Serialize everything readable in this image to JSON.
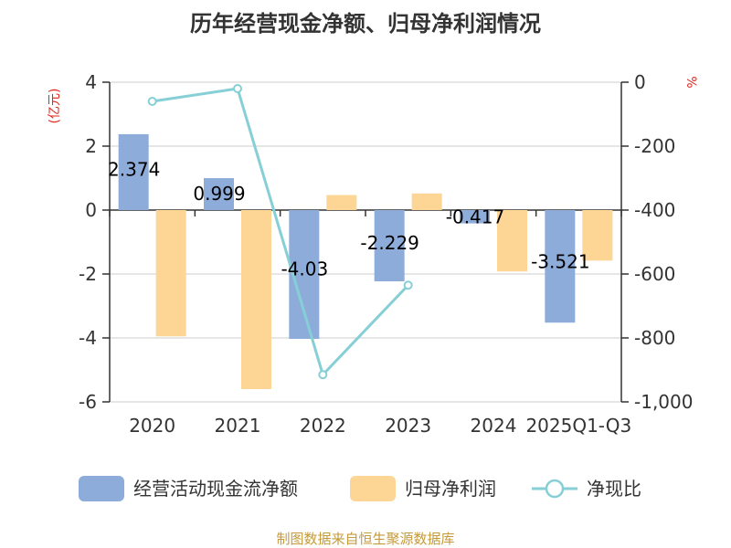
{
  "chart_data": {
    "type": "bar+line",
    "title": "历年经营现金净额、归母净利润情况",
    "categories": [
      "2020",
      "2021",
      "2022",
      "2023",
      "2024",
      "2025Q1-Q3"
    ],
    "left_axis": {
      "label": "(亿元)",
      "range": [
        -6,
        4
      ],
      "ticks": [
        4,
        2,
        0,
        -2,
        -4,
        -6
      ]
    },
    "right_axis": {
      "label": "%",
      "range": [
        -1000,
        0
      ],
      "ticks": [
        "0",
        "-200",
        "-400",
        "-600",
        "-800",
        "-1,000"
      ],
      "tick_values": [
        0,
        -200,
        -400,
        -600,
        -800,
        -1000
      ]
    },
    "series": [
      {
        "name": "经营活动现金流净额",
        "type": "bar",
        "axis": "left",
        "color": "#8eacd9",
        "values": [
          2.374,
          0.999,
          -4.03,
          -2.229,
          -0.417,
          -3.521
        ],
        "labels": [
          "2.374",
          "0.999",
          "-4.03",
          "-2.229",
          "-0.417",
          "-3.521"
        ]
      },
      {
        "name": "归母净利润",
        "type": "bar",
        "axis": "left",
        "color": "#fdd594",
        "values": [
          -3.95,
          -5.6,
          0.47,
          0.52,
          -1.92,
          -1.58
        ]
      },
      {
        "name": "净现比",
        "type": "line",
        "axis": "right",
        "color": "#86cfd6",
        "values": [
          -60,
          -20,
          -915,
          -635,
          null,
          null
        ]
      }
    ],
    "label_color": "#e0261d",
    "source_color": "#c49a3a",
    "source": "制图数据来自恒生聚源数据库"
  }
}
